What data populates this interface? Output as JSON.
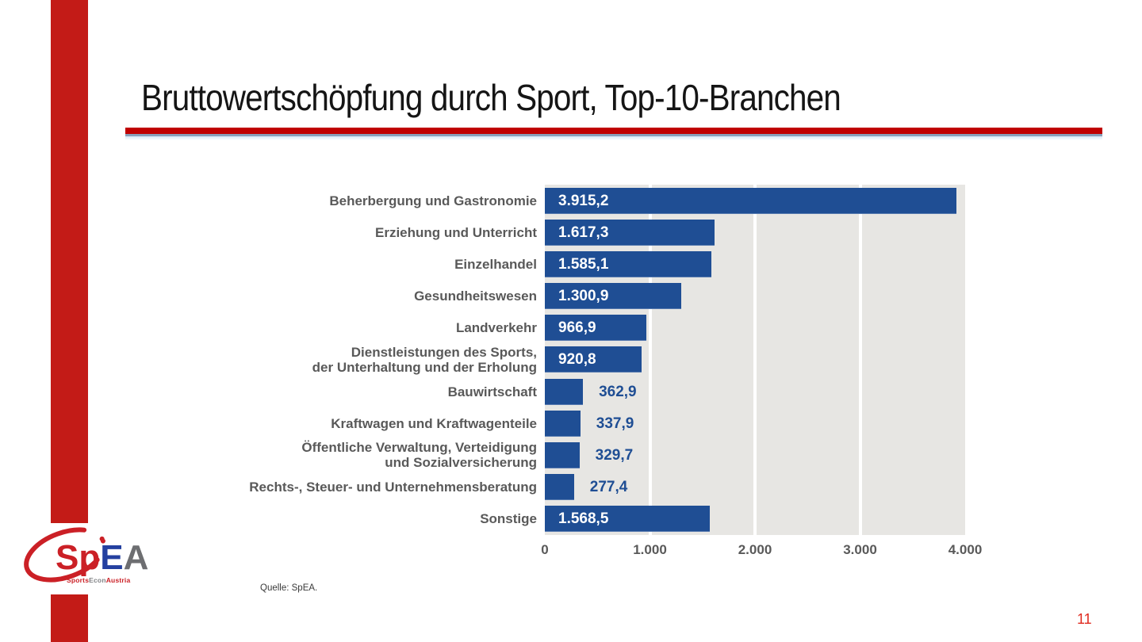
{
  "slide": {
    "title": "Bruttowertschöpfung durch Sport, Top-10-Branchen",
    "source": "Quelle: SpEA.",
    "page_number": "11"
  },
  "logo": {
    "part_sp": "Sp",
    "part_e": "E",
    "part_a": "A",
    "sub_sports": "Sports",
    "sub_econ": "Econ",
    "sub_austria": "Austria"
  },
  "colors": {
    "accent_red": "#c31b17",
    "rule_red": "#c00000",
    "bar_blue": "#1f4e94",
    "label_gray": "#595959",
    "plot_bg": "#e7e6e3",
    "page_red": "#e02b20"
  },
  "chart_data": {
    "type": "bar",
    "orientation": "horizontal",
    "title": "Bruttowertschöpfung durch Sport, Top-10-Branchen",
    "xlabel": "",
    "ylabel": "",
    "xlim": [
      0,
      4000
    ],
    "x_ticks": [
      "0",
      "1.000",
      "2.000",
      "3.000",
      "4.000"
    ],
    "x_tick_values": [
      0,
      1000,
      2000,
      3000,
      4000
    ],
    "grid": "vertical white gridlines on gray plot panel",
    "legend": "none",
    "categories": [
      "Beherbergung und Gastronomie",
      "Erziehung und Unterricht",
      "Einzelhandel",
      "Gesundheitswesen",
      "Landverkehr",
      "Dienstleistungen des Sports, der Unterhaltung und der Erholung",
      "Bauwirtschaft",
      "Kraftwagen und Kraftwagenteile",
      "Öffentliche Verwaltung, Verteidigung und Sozialversicherung",
      "Rechts-, Steuer- und Unternehmensberatung",
      "Sonstige"
    ],
    "values": [
      3915.2,
      1617.3,
      1585.1,
      1300.9,
      966.9,
      920.8,
      362.9,
      337.9,
      329.7,
      277.4,
      1568.5
    ],
    "rows": [
      {
        "label_lines": [
          "Beherbergung und Gastronomie"
        ],
        "value": 3915.2,
        "value_label": "3.915,2",
        "label_inside": true
      },
      {
        "label_lines": [
          "Erziehung und Unterricht"
        ],
        "value": 1617.3,
        "value_label": "1.617,3",
        "label_inside": true
      },
      {
        "label_lines": [
          "Einzelhandel"
        ],
        "value": 1585.1,
        "value_label": "1.585,1",
        "label_inside": true
      },
      {
        "label_lines": [
          "Gesundheitswesen"
        ],
        "value": 1300.9,
        "value_label": "1.300,9",
        "label_inside": true
      },
      {
        "label_lines": [
          "Landverkehr"
        ],
        "value": 966.9,
        "value_label": "966,9",
        "label_inside": true
      },
      {
        "label_lines": [
          "Dienstleistungen des Sports,",
          "der Unterhaltung und der Erholung"
        ],
        "value": 920.8,
        "value_label": "920,8",
        "label_inside": true
      },
      {
        "label_lines": [
          "Bauwirtschaft"
        ],
        "value": 362.9,
        "value_label": "362,9",
        "label_inside": false
      },
      {
        "label_lines": [
          "Kraftwagen und Kraftwagenteile"
        ],
        "value": 337.9,
        "value_label": "337,9",
        "label_inside": false
      },
      {
        "label_lines": [
          "Öffentliche Verwaltung, Verteidigung",
          "und Sozialversicherung"
        ],
        "value": 329.7,
        "value_label": "329,7",
        "label_inside": false
      },
      {
        "label_lines": [
          "Rechts-, Steuer- und Unternehmensberatung"
        ],
        "value": 277.4,
        "value_label": "277,4",
        "label_inside": false
      },
      {
        "label_lines": [
          "Sonstige"
        ],
        "value": 1568.5,
        "value_label": "1.568,5",
        "label_inside": true
      }
    ]
  }
}
